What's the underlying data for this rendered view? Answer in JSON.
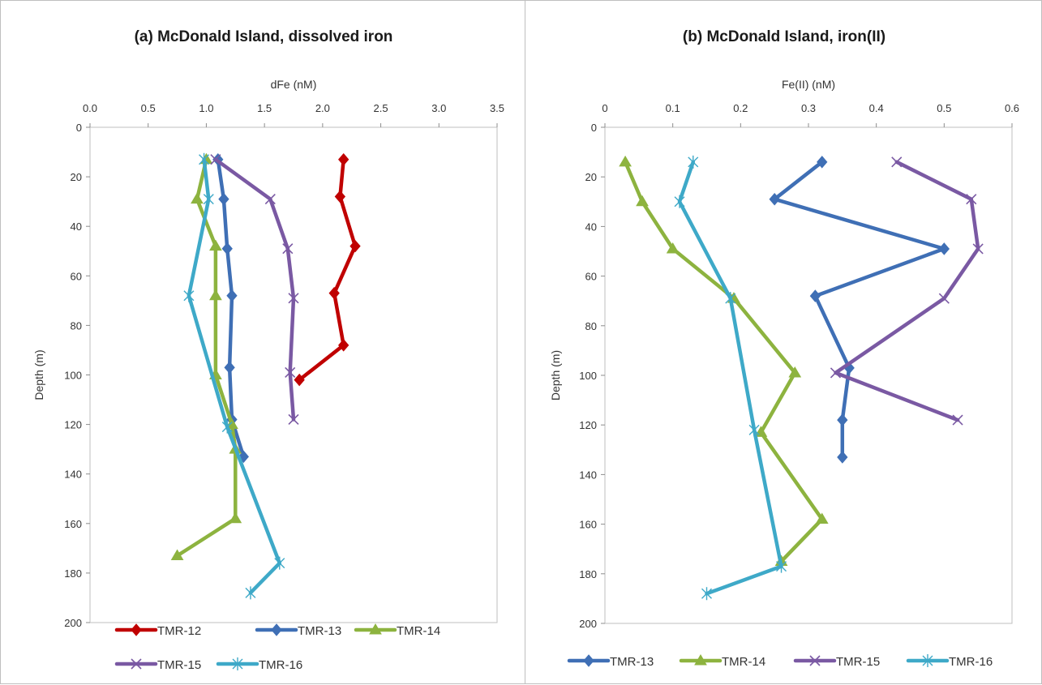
{
  "chart_data": [
    {
      "type": "line",
      "title": "(a) McDonald Island, dissolved iron",
      "xlabel": "dFe (nM)",
      "ylabel": "Depth (m)",
      "xlim": [
        0,
        3.5
      ],
      "ylim": [
        0,
        200
      ],
      "y_inverted": true,
      "x_axis_position": "top",
      "x_ticks": [
        "0.0",
        "0.5",
        "1.0",
        "1.5",
        "2.0",
        "2.5",
        "3.0",
        "3.5"
      ],
      "y_ticks": [
        "0",
        "20",
        "40",
        "60",
        "80",
        "100",
        "120",
        "140",
        "160",
        "180",
        "200"
      ],
      "grid": false,
      "legend_position": "bottom",
      "series": [
        {
          "name": "TMR-12",
          "color": "#c00000",
          "marker": "diamond",
          "points": [
            [
              2.18,
              13
            ],
            [
              2.15,
              28
            ],
            [
              2.28,
              48
            ],
            [
              2.1,
              67
            ],
            [
              2.18,
              88
            ],
            [
              1.8,
              102
            ]
          ]
        },
        {
          "name": "TMR-13",
          "color": "#3f6fb5",
          "marker": "diamond",
          "points": [
            [
              1.1,
              13
            ],
            [
              1.15,
              29
            ],
            [
              1.18,
              49
            ],
            [
              1.22,
              68
            ],
            [
              1.2,
              97
            ],
            [
              1.22,
              118
            ],
            [
              1.32,
              133
            ]
          ]
        },
        {
          "name": "TMR-14",
          "color": "#8db33f",
          "marker": "triangle",
          "points": [
            [
              1.0,
              13
            ],
            [
              0.92,
              29
            ],
            [
              1.08,
              48
            ],
            [
              1.08,
              68
            ],
            [
              1.08,
              100
            ],
            [
              1.22,
              120
            ],
            [
              1.25,
              130
            ],
            [
              1.25,
              158
            ],
            [
              0.75,
              173
            ]
          ]
        },
        {
          "name": "TMR-15",
          "color": "#7a59a3",
          "marker": "x",
          "points": [
            [
              1.08,
              13
            ],
            [
              1.55,
              29
            ],
            [
              1.7,
              49
            ],
            [
              1.75,
              69
            ],
            [
              1.72,
              99
            ],
            [
              1.75,
              118
            ]
          ]
        },
        {
          "name": "TMR-16",
          "color": "#3ea9c8",
          "marker": "star",
          "points": [
            [
              0.98,
              13
            ],
            [
              1.02,
              29
            ],
            [
              0.85,
              68
            ],
            [
              1.18,
              121
            ],
            [
              1.63,
              176
            ],
            [
              1.38,
              188
            ]
          ]
        }
      ]
    },
    {
      "type": "line",
      "title": "(b) McDonald Island, iron(II)",
      "xlabel": "Fe(II) (nM)",
      "ylabel": "Depth (m)",
      "xlim": [
        0,
        0.6
      ],
      "ylim": [
        0,
        200
      ],
      "y_inverted": true,
      "x_axis_position": "top",
      "x_ticks": [
        "0",
        "0.1",
        "0.2",
        "0.3",
        "0.4",
        "0.5",
        "0.6"
      ],
      "y_ticks": [
        "0",
        "20",
        "40",
        "60",
        "80",
        "100",
        "120",
        "140",
        "160",
        "180",
        "200"
      ],
      "grid": false,
      "legend_position": "bottom",
      "series": [
        {
          "name": "TMR-13",
          "color": "#3f6fb5",
          "marker": "diamond",
          "points": [
            [
              0.32,
              14
            ],
            [
              0.25,
              29
            ],
            [
              0.5,
              49
            ],
            [
              0.31,
              68
            ],
            [
              0.36,
              97
            ],
            [
              0.35,
              118
            ],
            [
              0.35,
              133
            ]
          ]
        },
        {
          "name": "TMR-14",
          "color": "#8db33f",
          "marker": "triangle",
          "points": [
            [
              0.03,
              14
            ],
            [
              0.055,
              30
            ],
            [
              0.1,
              49
            ],
            [
              0.19,
              69
            ],
            [
              0.28,
              99
            ],
            [
              0.23,
              123
            ],
            [
              0.32,
              158
            ],
            [
              0.26,
              175
            ]
          ]
        },
        {
          "name": "TMR-15",
          "color": "#7a59a3",
          "marker": "x",
          "points": [
            [
              0.43,
              14
            ],
            [
              0.54,
              29
            ],
            [
              0.55,
              49
            ],
            [
              0.5,
              69
            ],
            [
              0.34,
              99
            ],
            [
              0.52,
              118
            ]
          ]
        },
        {
          "name": "TMR-16",
          "color": "#3ea9c8",
          "marker": "star",
          "points": [
            [
              0.13,
              14
            ],
            [
              0.11,
              30
            ],
            [
              0.185,
              69
            ],
            [
              0.22,
              122
            ],
            [
              0.26,
              177
            ],
            [
              0.15,
              188
            ]
          ]
        }
      ]
    }
  ]
}
